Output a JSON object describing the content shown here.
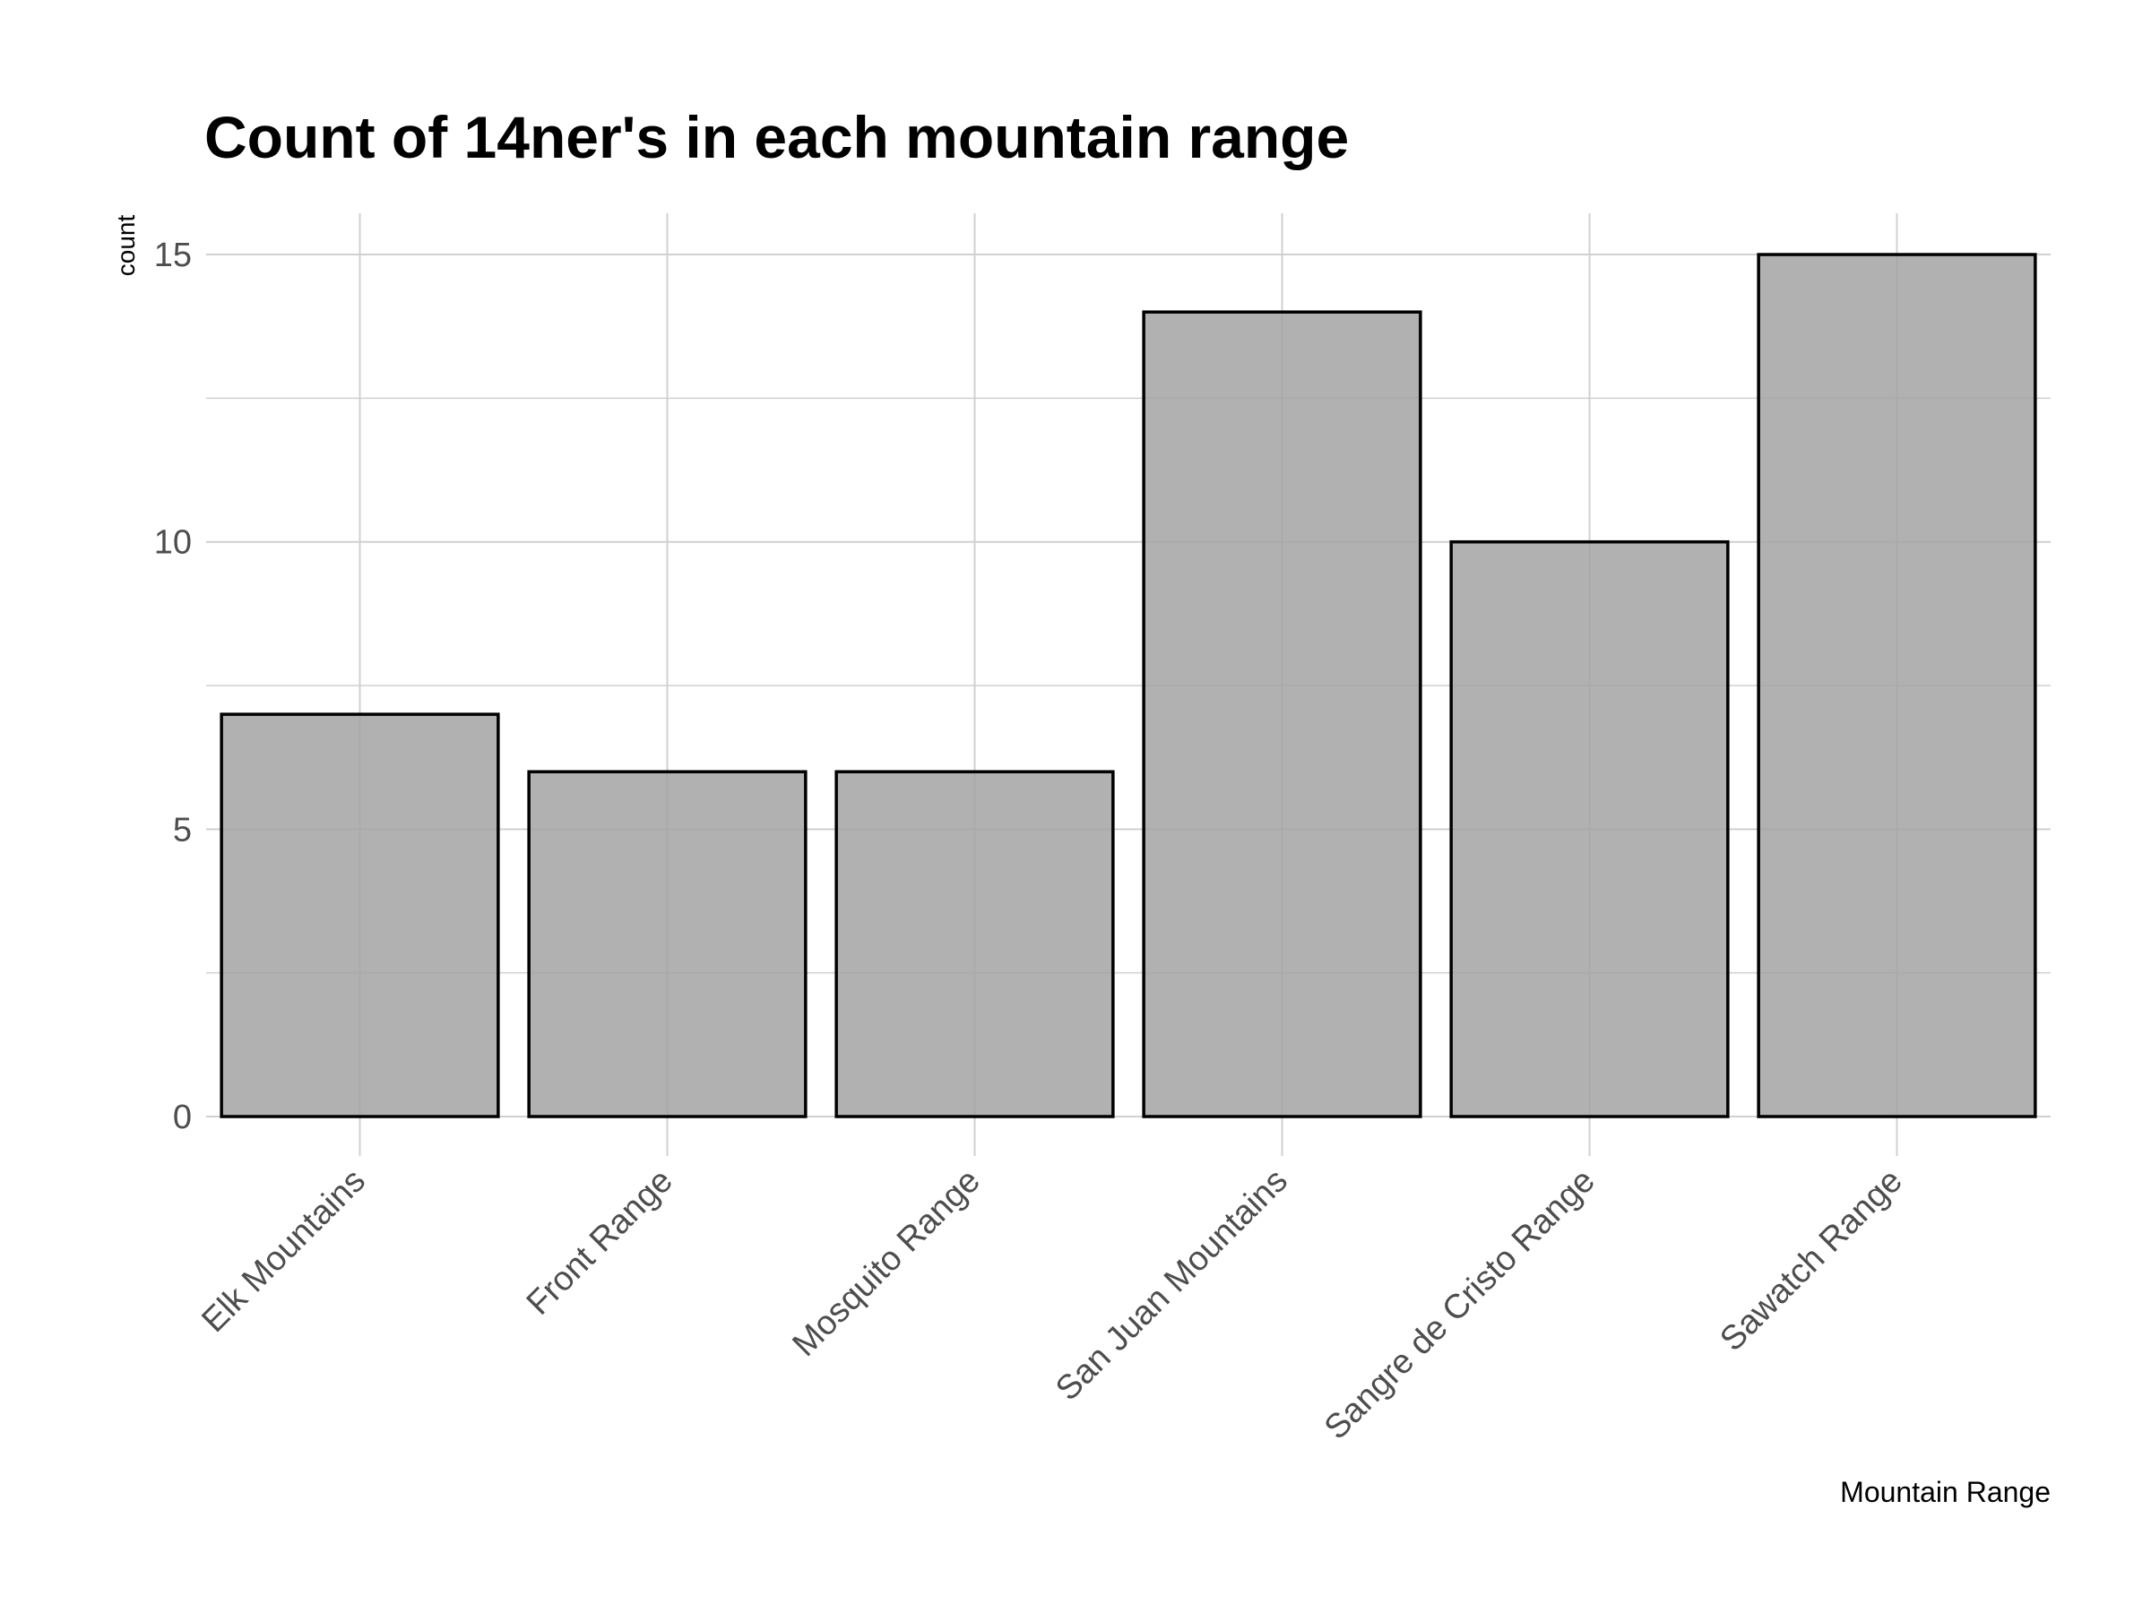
{
  "chart_data": {
    "type": "bar",
    "title": "Count of 14ner's in each mountain range",
    "xlabel": "Mountain Range",
    "ylabel": "count",
    "categories": [
      "Elk Mountains",
      "Front Range",
      "Mosquito Range",
      "San Juan Mountains",
      "Sangre de Cristo Range",
      "Sawatch Range"
    ],
    "values": [
      7,
      6,
      6,
      14,
      10,
      15
    ],
    "ylim": [
      -0.75,
      15.75
    ],
    "yticks": [
      0,
      5,
      10,
      15
    ],
    "y_minor_ticks": [
      2.5,
      7.5,
      12.5
    ],
    "grid": true,
    "legend": "none",
    "colors": {
      "bar_fill": "#a3a3a3",
      "bar_stroke": "#000000",
      "grid": "#d0d0d0",
      "tick_text": "#4d4d4d",
      "title_text": "#000000"
    }
  }
}
